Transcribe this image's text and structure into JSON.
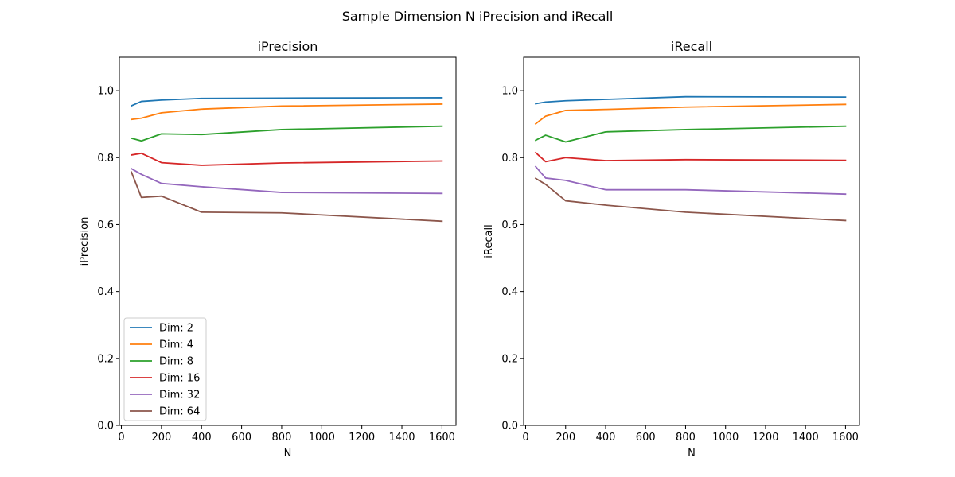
{
  "figure": {
    "suptitle": "Sample Dimension N iPrecision and iRecall"
  },
  "chart_data": [
    {
      "type": "line",
      "title": "iPrecision",
      "xlabel": "N",
      "ylabel": "iPrecision",
      "xlim": [
        -10,
        1670
      ],
      "ylim": [
        0,
        1.1
      ],
      "xticks": [
        0,
        200,
        400,
        600,
        800,
        1000,
        1200,
        1400,
        1600
      ],
      "yticks": [
        0.0,
        0.2,
        0.4,
        0.6,
        0.8,
        1.0
      ],
      "xtick_labels": [
        "0",
        "200",
        "400",
        "600",
        "800",
        "1000",
        "1200",
        "1400",
        "1600"
      ],
      "ytick_labels": [
        "0.0",
        "0.2",
        "0.4",
        "0.6",
        "0.8",
        "1.0"
      ],
      "grid": false,
      "legend": "lower-left",
      "x": [
        50,
        100,
        200,
        400,
        800,
        1600
      ],
      "series": [
        {
          "name": "Dim: 2",
          "color": "#1f77b4",
          "values": [
            0.955,
            0.968,
            0.972,
            0.977,
            0.978,
            0.979
          ]
        },
        {
          "name": "Dim: 4",
          "color": "#ff7f0e",
          "values": [
            0.914,
            0.918,
            0.934,
            0.945,
            0.954,
            0.96
          ]
        },
        {
          "name": "Dim: 8",
          "color": "#2ca02c",
          "values": [
            0.858,
            0.85,
            0.871,
            0.869,
            0.884,
            0.894
          ]
        },
        {
          "name": "Dim: 16",
          "color": "#d62728",
          "values": [
            0.808,
            0.813,
            0.785,
            0.777,
            0.784,
            0.79
          ]
        },
        {
          "name": "Dim: 32",
          "color": "#9467bd",
          "values": [
            0.767,
            0.75,
            0.723,
            0.713,
            0.696,
            0.693
          ]
        },
        {
          "name": "Dim: 64",
          "color": "#8c564b",
          "values": [
            0.757,
            0.681,
            0.685,
            0.637,
            0.635,
            0.61
          ]
        }
      ]
    },
    {
      "type": "line",
      "title": "iRecall",
      "xlabel": "N",
      "ylabel": "iRecall",
      "xlim": [
        -10,
        1670
      ],
      "ylim": [
        0,
        1.1
      ],
      "xticks": [
        0,
        200,
        400,
        600,
        800,
        1000,
        1200,
        1400,
        1600
      ],
      "yticks": [
        0.0,
        0.2,
        0.4,
        0.6,
        0.8,
        1.0
      ],
      "xtick_labels": [
        "0",
        "200",
        "400",
        "600",
        "800",
        "1000",
        "1200",
        "1400",
        "1600"
      ],
      "ytick_labels": [
        "0.0",
        "0.2",
        "0.4",
        "0.6",
        "0.8",
        "1.0"
      ],
      "grid": false,
      "x": [
        50,
        100,
        200,
        400,
        800,
        1600
      ],
      "series": [
        {
          "color": "#1f77b4",
          "values": [
            0.961,
            0.966,
            0.97,
            0.974,
            0.982,
            0.981
          ]
        },
        {
          "color": "#ff7f0e",
          "values": [
            0.901,
            0.924,
            0.941,
            0.944,
            0.951,
            0.959
          ]
        },
        {
          "color": "#2ca02c",
          "values": [
            0.852,
            0.867,
            0.847,
            0.877,
            0.884,
            0.894
          ]
        },
        {
          "color": "#d62728",
          "values": [
            0.815,
            0.788,
            0.8,
            0.791,
            0.794,
            0.792
          ]
        },
        {
          "color": "#9467bd",
          "values": [
            0.773,
            0.739,
            0.732,
            0.704,
            0.704,
            0.691
          ]
        },
        {
          "color": "#8c564b",
          "values": [
            0.738,
            0.72,
            0.671,
            0.658,
            0.637,
            0.612
          ]
        }
      ]
    }
  ]
}
